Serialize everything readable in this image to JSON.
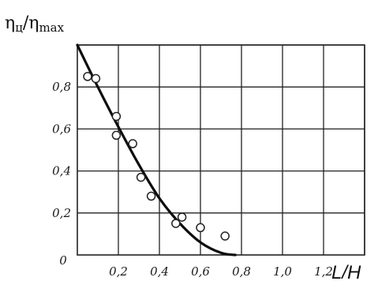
{
  "chart_data": {
    "type": "scatter",
    "ylabel_parts": {
      "eta": "η",
      "sub": "ц",
      "slash": "/",
      "eta2": "η",
      "sub2": "max"
    },
    "xlabel": "L/H",
    "origin_label": "0",
    "xlim": [
      0,
      1.4
    ],
    "ylim": [
      0,
      1.0
    ],
    "x_ticks": [
      {
        "value": 0.2,
        "label": "0,2"
      },
      {
        "value": 0.4,
        "label": "0,4"
      },
      {
        "value": 0.6,
        "label": "0,6"
      },
      {
        "value": 0.8,
        "label": "0,8"
      },
      {
        "value": 1.0,
        "label": "1,0"
      },
      {
        "value": 1.2,
        "label": "1,2"
      }
    ],
    "y_ticks": [
      {
        "value": 0.2,
        "label": "0,2"
      },
      {
        "value": 0.4,
        "label": "0,4"
      },
      {
        "value": 0.6,
        "label": "0,6"
      },
      {
        "value": 0.8,
        "label": "0,8"
      }
    ],
    "x_grid": [
      0.2,
      0.4,
      0.6,
      0.8,
      1.0,
      1.2,
      1.4
    ],
    "y_grid": [
      0.2,
      0.4,
      0.6,
      0.8,
      1.0
    ],
    "grid": true,
    "points": [
      {
        "x": 0.05,
        "y": 0.85
      },
      {
        "x": 0.09,
        "y": 0.84
      },
      {
        "x": 0.19,
        "y": 0.66
      },
      {
        "x": 0.19,
        "y": 0.57
      },
      {
        "x": 0.27,
        "y": 0.53
      },
      {
        "x": 0.31,
        "y": 0.37
      },
      {
        "x": 0.36,
        "y": 0.28
      },
      {
        "x": 0.48,
        "y": 0.15
      },
      {
        "x": 0.51,
        "y": 0.18
      },
      {
        "x": 0.6,
        "y": 0.13
      },
      {
        "x": 0.72,
        "y": 0.09
      }
    ],
    "fit_curve": [
      {
        "x": 0.0,
        "y": 1.0
      },
      {
        "x": 0.1,
        "y": 0.8
      },
      {
        "x": 0.2,
        "y": 0.61
      },
      {
        "x": 0.3,
        "y": 0.43
      },
      {
        "x": 0.4,
        "y": 0.27
      },
      {
        "x": 0.5,
        "y": 0.15
      },
      {
        "x": 0.6,
        "y": 0.06
      },
      {
        "x": 0.7,
        "y": 0.01
      },
      {
        "x": 0.77,
        "y": 0.0
      }
    ]
  }
}
